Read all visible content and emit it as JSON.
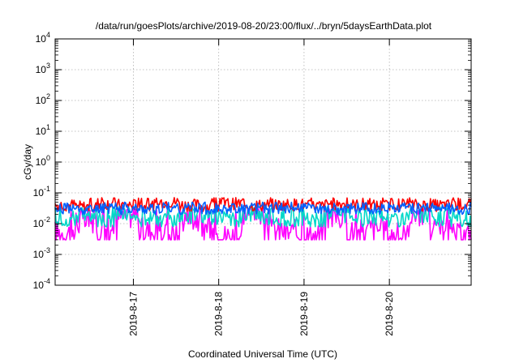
{
  "chart_data": {
    "type": "line",
    "title": "/data/run/goesPlots/archive/2019-08-20/23:00/flux/../bryn/5daysEarthData.plot",
    "xlabel": "Coordinated Universal Time (UTC)",
    "ylabel": "cGy/day",
    "yscale": "log",
    "ylim": [
      0.0001,
      10000
    ],
    "xlim": [
      "2019-08-16 02:00",
      "2019-08-20 23:00"
    ],
    "grid": true,
    "y_ticks": [
      {
        "base": "10",
        "exp": "-4"
      },
      {
        "base": "10",
        "exp": "-3"
      },
      {
        "base": "10",
        "exp": "-2"
      },
      {
        "base": "10",
        "exp": "-1"
      },
      {
        "base": "10",
        "exp": "0"
      },
      {
        "base": "10",
        "exp": "1"
      },
      {
        "base": "10",
        "exp": "2"
      },
      {
        "base": "10",
        "exp": "3"
      },
      {
        "base": "10",
        "exp": "4"
      }
    ],
    "x_ticks": [
      "2019-8-17",
      "2019-8-18",
      "2019-8-19",
      "2019-8-20"
    ],
    "series": [
      {
        "color": "#ff00ff",
        "pattern": "noisy",
        "low": 0.003,
        "high": 0.03,
        "values": [
          0.005,
          0.012,
          0.004,
          0.02,
          0.006,
          0.004,
          0.015,
          0.005,
          0.004,
          0.025,
          0.006,
          0.005,
          0.004,
          0.018,
          0.005,
          0.007,
          0.004,
          0.022,
          0.005,
          0.004
        ]
      },
      {
        "color": "#00d8c8",
        "pattern": "noisy",
        "low": 0.008,
        "high": 0.035,
        "values": [
          0.015,
          0.02,
          0.012,
          0.025,
          0.014,
          0.012,
          0.02,
          0.015,
          0.013,
          0.022,
          0.016,
          0.014,
          0.012,
          0.02,
          0.015,
          0.016,
          0.013,
          0.021,
          0.015,
          0.014
        ]
      },
      {
        "color": "#ff0000",
        "pattern": "noisy",
        "low": 0.025,
        "high": 0.07,
        "values": [
          0.04,
          0.035,
          0.045,
          0.04,
          0.038,
          0.05,
          0.04,
          0.036,
          0.045,
          0.039,
          0.04,
          0.042,
          0.037,
          0.044,
          0.04,
          0.038,
          0.043,
          0.04,
          0.039,
          0.041
        ]
      },
      {
        "color": "#0060ff",
        "pattern": "noisy",
        "low": 0.02,
        "high": 0.05,
        "values": [
          0.03,
          0.028,
          0.032,
          0.03,
          0.029,
          0.033,
          0.03,
          0.028,
          0.031,
          0.03,
          0.029,
          0.032,
          0.03,
          0.028,
          0.031,
          0.03,
          0.029,
          0.031,
          0.03,
          0.029
        ]
      }
    ]
  }
}
